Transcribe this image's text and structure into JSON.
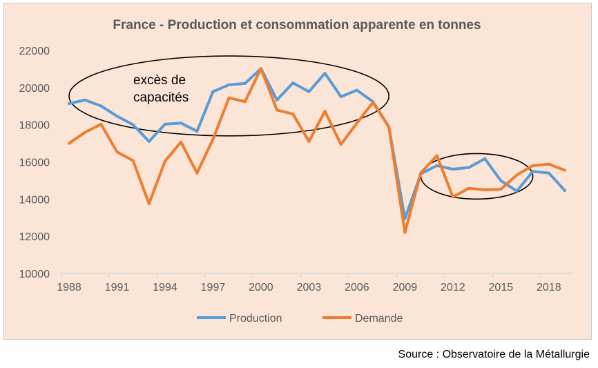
{
  "chart_data": {
    "type": "line",
    "title": "France - Production et consommation apparente en tonnes",
    "xlabel": "",
    "ylabel": "",
    "x": [
      1988,
      1989,
      1990,
      1991,
      1992,
      1993,
      1994,
      1995,
      1996,
      1997,
      1998,
      1999,
      2000,
      2001,
      2002,
      2003,
      2004,
      2005,
      2006,
      2007,
      2008,
      2009,
      2010,
      2011,
      2012,
      2013,
      2014,
      2015,
      2016,
      2017,
      2018,
      2019
    ],
    "x_tick_labels": [
      "1988",
      "1991",
      "1994",
      "1997",
      "2000",
      "2003",
      "2006",
      "2009",
      "2012",
      "2015",
      "2018"
    ],
    "ylim": [
      10000,
      22000
    ],
    "y_tick_labels": [
      "10000",
      "12000",
      "14000",
      "16000",
      "18000",
      "20000",
      "22000"
    ],
    "grid": false,
    "legend_position": "bottom",
    "series": [
      {
        "name": "Production",
        "color": "#5b9bd5",
        "values": [
          19140,
          19330,
          19010,
          18460,
          18000,
          17100,
          18030,
          18090,
          17650,
          19780,
          20150,
          20220,
          21020,
          19330,
          20250,
          19780,
          20770,
          19510,
          19860,
          19240,
          17880,
          12950,
          15360,
          15800,
          15610,
          15700,
          16170,
          14990,
          14430,
          15490,
          15400,
          14460
        ]
      },
      {
        "name": "Demande",
        "color": "#ed7d31",
        "values": [
          17000,
          17590,
          18030,
          16540,
          16070,
          13750,
          16040,
          17070,
          15400,
          17220,
          19450,
          19240,
          21020,
          18790,
          18580,
          17100,
          18730,
          16940,
          18090,
          19200,
          17880,
          12200,
          15420,
          16330,
          14120,
          14580,
          14500,
          14530,
          15300,
          15800,
          15880,
          15550
        ]
      }
    ],
    "annotations": [
      {
        "type": "ellipse",
        "label": "excès de capacités",
        "x_range": [
          1988,
          2008
        ],
        "y_range": [
          17400,
          21700
        ]
      },
      {
        "type": "ellipse",
        "label": "",
        "x_range": [
          2010,
          2017
        ],
        "y_range": [
          14000,
          16450
        ]
      }
    ]
  },
  "source": "Source : Observatoire de la Métallurgie"
}
